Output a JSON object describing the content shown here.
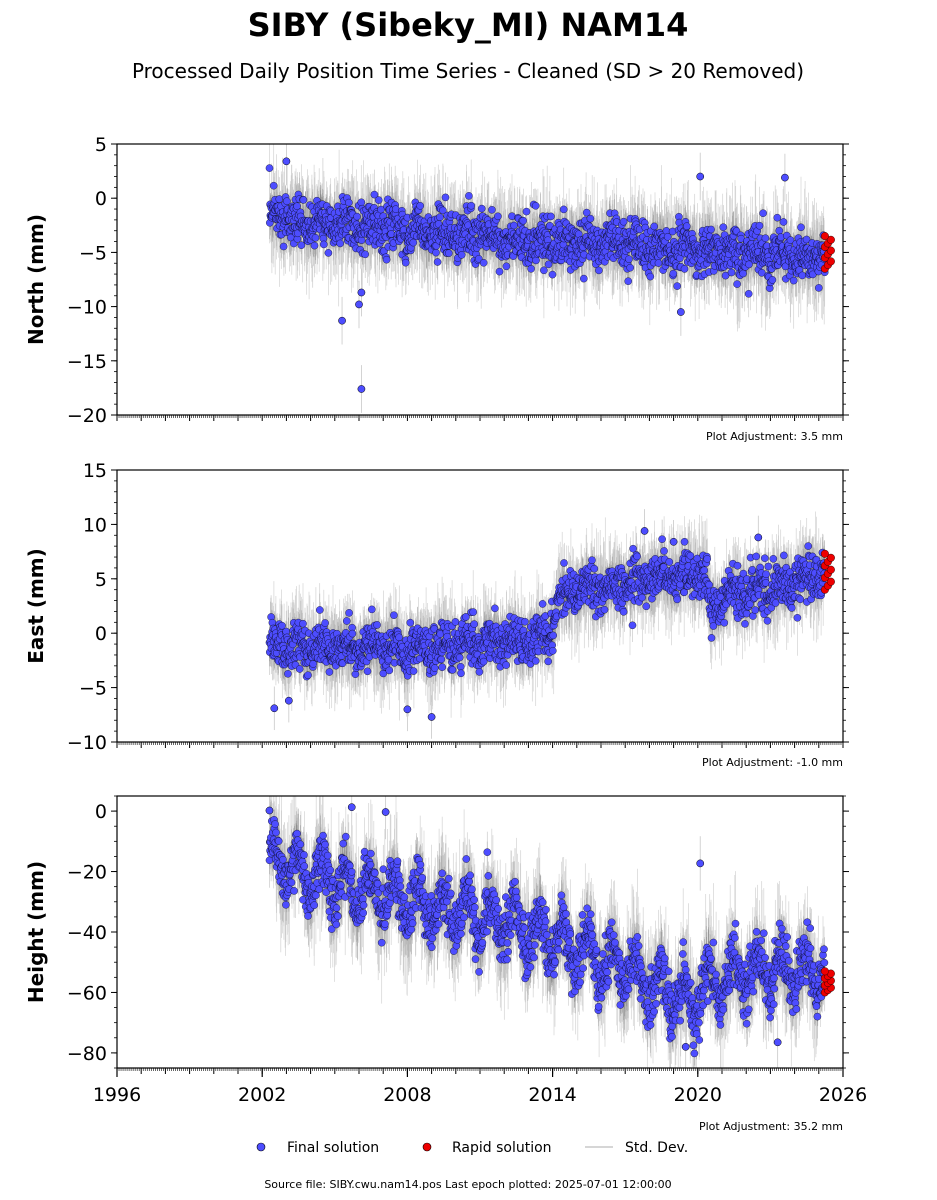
{
  "title": "SIBY (Sibeky_MI) NAM14",
  "subtitle": "Processed Daily Position Time Series - Cleaned (SD > 20 Removed)",
  "footer": "Source file: SIBY.cwu.nam14.pos  Last epoch plotted: 2025-07-01 12:00:00",
  "legend": {
    "final": "Final solution",
    "rapid": "Rapid solution",
    "std": "Std. Dev."
  },
  "colors": {
    "final": "#4d4dff",
    "rapid": "#ee0000",
    "std": "#c8c8c8",
    "std_dark": "#6a6a6a"
  },
  "chart_data": [
    {
      "type": "scatter",
      "component": "north",
      "ylabel": "North (mm)",
      "ylim": [
        -20,
        5
      ],
      "yticks": [
        5,
        0,
        -5,
        -10,
        -15,
        -20
      ],
      "xlim": [
        1996,
        2026
      ],
      "xticks": [],
      "adjustment": "Plot Adjustment: 3.5 mm",
      "trend": [
        [
          2002.3,
          -1.8
        ],
        [
          2008,
          -3.0
        ],
        [
          2014,
          -4.0
        ],
        [
          2020,
          -4.8
        ],
        [
          2025.5,
          -5.5
        ]
      ],
      "seasonal_amplitude": 0.5,
      "scatter_sd": 1.1,
      "outliers": [
        [
          2003.0,
          3.4
        ],
        [
          2005.3,
          -11.3
        ],
        [
          2006.0,
          -9.8
        ],
        [
          2006.1,
          -17.6
        ],
        [
          2006.1,
          -8.7
        ],
        [
          2019.3,
          -10.5
        ],
        [
          2020.1,
          2.0
        ],
        [
          2023.6,
          1.9
        ]
      ],
      "rapid": {
        "x_range": [
          2025.25,
          2025.5
        ],
        "y_range": [
          -6.5,
          -3.5
        ]
      }
    },
    {
      "type": "scatter",
      "component": "east",
      "ylabel": "East (mm)",
      "ylim": [
        -10,
        15
      ],
      "yticks": [
        15,
        10,
        5,
        0,
        -5,
        -10
      ],
      "xlim": [
        1996,
        2026
      ],
      "xticks": [],
      "adjustment": "Plot Adjustment: -1.0 mm",
      "trend": [
        [
          2002.3,
          -1.2
        ],
        [
          2008,
          -1.4
        ],
        [
          2013.9,
          -0.3
        ],
        [
          2014.3,
          3.5
        ],
        [
          2016,
          4.2
        ],
        [
          2019,
          5.3
        ],
        [
          2020.3,
          5.5
        ],
        [
          2020.5,
          1.5
        ],
        [
          2021,
          3.2
        ],
        [
          2023,
          4.0
        ],
        [
          2025.5,
          5.8
        ]
      ],
      "seasonal_amplitude": 0.5,
      "scatter_sd": 1.0,
      "outliers": [
        [
          2002.5,
          -6.9
        ],
        [
          2003.1,
          -6.2
        ],
        [
          2008.0,
          -7.0
        ],
        [
          2009.0,
          -7.7
        ],
        [
          2017.8,
          9.4
        ],
        [
          2019.0,
          8.4
        ],
        [
          2022.5,
          8.8
        ]
      ],
      "rapid": {
        "x_range": [
          2025.25,
          2025.5
        ],
        "y_range": [
          4.0,
          7.3
        ]
      }
    },
    {
      "type": "scatter",
      "component": "height",
      "ylabel": "Height (mm)",
      "ylim": [
        -85,
        5
      ],
      "yticks": [
        0,
        -20,
        -40,
        -60,
        -80
      ],
      "xlim": [
        1996,
        2026
      ],
      "xticks": [
        1996,
        2002,
        2008,
        2014,
        2020,
        2026
      ],
      "adjustment": "Plot Adjustment: 35.2 mm",
      "trend": [
        [
          2002.3,
          -16
        ],
        [
          2005,
          -24
        ],
        [
          2008,
          -30
        ],
        [
          2011,
          -35
        ],
        [
          2014,
          -42
        ],
        [
          2017,
          -52
        ],
        [
          2019.7,
          -64
        ],
        [
          2020.3,
          -58
        ],
        [
          2021,
          -56
        ],
        [
          2023,
          -52
        ],
        [
          2025.5,
          -54
        ]
      ],
      "seasonal_amplitude": 7,
      "scatter_sd": 4.5,
      "outliers": [
        [
          2002.3,
          0.2
        ],
        [
          2005.7,
          1.3
        ],
        [
          2007.1,
          -0.3
        ],
        [
          2020.1,
          -17.3
        ],
        [
          2023.3,
          -76.5
        ],
        [
          2019.5,
          -78.0
        ]
      ],
      "rapid": {
        "x_range": [
          2025.25,
          2025.5
        ],
        "y_range": [
          -60,
          -53
        ]
      }
    }
  ]
}
